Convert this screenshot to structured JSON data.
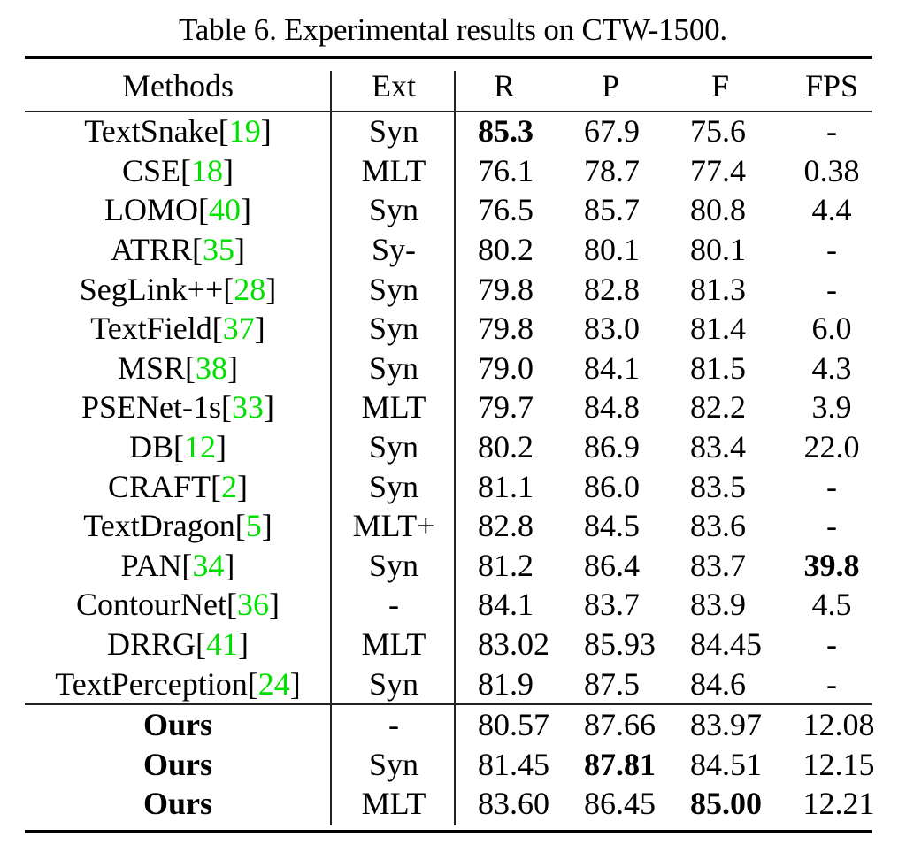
{
  "caption": "Table 6. Experimental results on CTW-1500.",
  "colors": {
    "text": "#000000",
    "citation": "#00e000",
    "rules": "#000000"
  },
  "table": {
    "headers": {
      "method": "Methods",
      "ext": "Ext",
      "r": "R",
      "p": "P",
      "f": "F",
      "fps": "FPS"
    },
    "rows": [
      {
        "name": "TextSnake ",
        "ref": "19",
        "ext": "Syn",
        "r": "85.3",
        "p": "67.9",
        "f": "75.6",
        "fps": "-",
        "bold": [
          "r"
        ]
      },
      {
        "name": "CSE ",
        "ref": "18",
        "ext": "MLT",
        "r": "76.1",
        "p": "78.7",
        "f": "77.4",
        "fps": "0.38",
        "bold": []
      },
      {
        "name": "LOMO",
        "ref": "40",
        "ext": "Syn",
        "r": "76.5",
        "p": "85.7",
        "f": "80.8",
        "fps": "4.4",
        "bold": []
      },
      {
        "name": "ATRR",
        "ref": "35",
        "ext": "Sy-",
        "r": "80.2",
        "p": "80.1",
        "f": "80.1",
        "fps": "-",
        "bold": []
      },
      {
        "name": "SegLink++ ",
        "ref": "28",
        "ext": "Syn",
        "r": "79.8",
        "p": "82.8",
        "f": "81.3",
        "fps": "-",
        "bold": []
      },
      {
        "name": "TextField ",
        "ref": "37",
        "ext": "Syn",
        "r": "79.8",
        "p": "83.0",
        "f": "81.4",
        "fps": "6.0",
        "bold": []
      },
      {
        "name": "MSR",
        "ref": "38",
        "ext": "Syn",
        "r": "79.0",
        "p": "84.1",
        "f": "81.5",
        "fps": "4.3",
        "bold": []
      },
      {
        "name": "PSENet-1s ",
        "ref": "33",
        "ext": "MLT",
        "r": "79.7",
        "p": "84.8",
        "f": "82.2",
        "fps": "3.9",
        "bold": []
      },
      {
        "name": "DB ",
        "ref": "12",
        "ext": "Syn",
        "r": "80.2",
        "p": "86.9",
        "f": "83.4",
        "fps": "22.0",
        "bold": []
      },
      {
        "name": "CRAFT ",
        "ref": "2",
        "ext": "Syn",
        "r": "81.1",
        "p": "86.0",
        "f": "83.5",
        "fps": "-",
        "bold": []
      },
      {
        "name": "TextDragon ",
        "ref": "5",
        "ext": "MLT+",
        "r": "82.8",
        "p": "84.5",
        "f": "83.6",
        "fps": "-",
        "bold": []
      },
      {
        "name": "PAN ",
        "ref": "34",
        "ext": "Syn",
        "r": "81.2",
        "p": "86.4",
        "f": "83.7",
        "fps": "39.8",
        "bold": [
          "fps"
        ]
      },
      {
        "name": "ContourNet ",
        "ref": "36",
        "ext": "-",
        "r": "84.1",
        "p": "83.7",
        "f": "83.9",
        "fps": "4.5",
        "bold": []
      },
      {
        "name": "DRRG ",
        "ref": "41",
        "ext": "MLT",
        "r": "83.02",
        "p": "85.93",
        "f": "84.45",
        "fps": "-",
        "bold": []
      },
      {
        "name": "TextPerception",
        "ref": "24",
        "ext": "Syn",
        "r": "81.9",
        "p": "87.5",
        "f": "84.6",
        "fps": "-",
        "bold": []
      }
    ],
    "ours_rows": [
      {
        "name": "Ours",
        "ext": "-",
        "r": "80.57",
        "p": "87.66",
        "f": "83.97",
        "fps": "12.08",
        "bold": []
      },
      {
        "name": "Ours",
        "ext": "Syn",
        "r": "81.45",
        "p": "87.81",
        "f": "84.51",
        "fps": "12.15",
        "bold": [
          "p"
        ]
      },
      {
        "name": "Ours",
        "ext": "MLT",
        "r": "83.60",
        "p": "86.45",
        "f": "85.00",
        "fps": "12.21",
        "bold": [
          "f"
        ]
      }
    ]
  }
}
